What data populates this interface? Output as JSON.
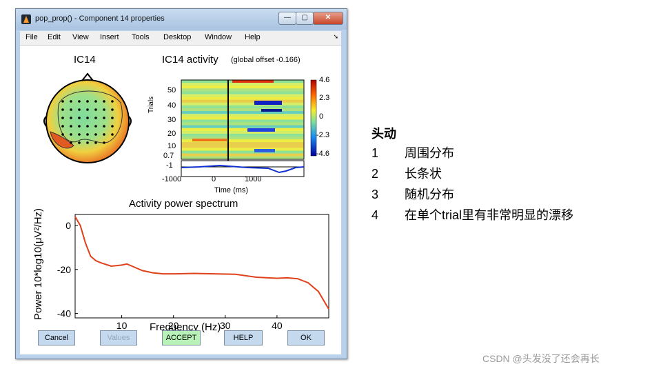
{
  "window": {
    "title": "pop_prop() - Component 14 properties",
    "buttons": {
      "minimize": "—",
      "maximize": "▢",
      "close": "✕"
    }
  },
  "menu": [
    "File",
    "Edit",
    "View",
    "Insert",
    "Tools",
    "Desktop",
    "Window",
    "Help"
  ],
  "topo": {
    "title": "IC14"
  },
  "erp": {
    "title": "IC14 activity",
    "subtitle": "(global offset -0.166)",
    "ylabel": "Trials",
    "yticks": [
      "50",
      "40",
      "30",
      "20",
      "10"
    ],
    "trace_ticks": [
      "0.7",
      "-1"
    ],
    "xticks": [
      "-1000",
      "0",
      "1000"
    ],
    "xlabel": "Time (ms)",
    "colorbar_ticks": [
      "4.6",
      "2.3",
      "0",
      "-2.3",
      "-4.6"
    ]
  },
  "chart_data": {
    "type": "line",
    "title": "Activity power spectrum",
    "xlabel": "Frequency (Hz)",
    "ylabel": "Power 10*log10(μV²/Hz)",
    "xlim": [
      1,
      50
    ],
    "ylim": [
      -42,
      5
    ],
    "xticks": [
      "10",
      "20",
      "30",
      "40"
    ],
    "yticks": [
      "0",
      "-20",
      "-40"
    ],
    "color": "#e0401a",
    "series": [
      {
        "x": [
          1,
          2,
          3,
          4,
          5,
          6,
          8,
          10,
          11,
          12,
          14,
          16,
          18,
          20,
          24,
          28,
          32,
          36,
          40,
          42,
          44,
          46,
          48,
          50
        ],
        "values": [
          4,
          0,
          -8,
          -14,
          -16,
          -17,
          -18.5,
          -18,
          -17.5,
          -18.5,
          -20.5,
          -21.5,
          -22,
          -22,
          -21.8,
          -22,
          -22.2,
          -23.5,
          -24,
          -23.8,
          -24.2,
          -26,
          -30,
          -38
        ]
      }
    ]
  },
  "buttons": {
    "cancel": "Cancel",
    "values": "Values",
    "accept": "ACCEPT",
    "help": "HELP",
    "ok": "OK"
  },
  "notes": {
    "title": "头动",
    "items": [
      {
        "num": "1",
        "text": "周围分布"
      },
      {
        "num": "2",
        "text": "长条状"
      },
      {
        "num": "3",
        "text": "随机分布"
      },
      {
        "num": "4",
        "text": "在单个trial里有非常明显的漂移"
      }
    ]
  },
  "watermark": "CSDN @头发没了还会再长"
}
